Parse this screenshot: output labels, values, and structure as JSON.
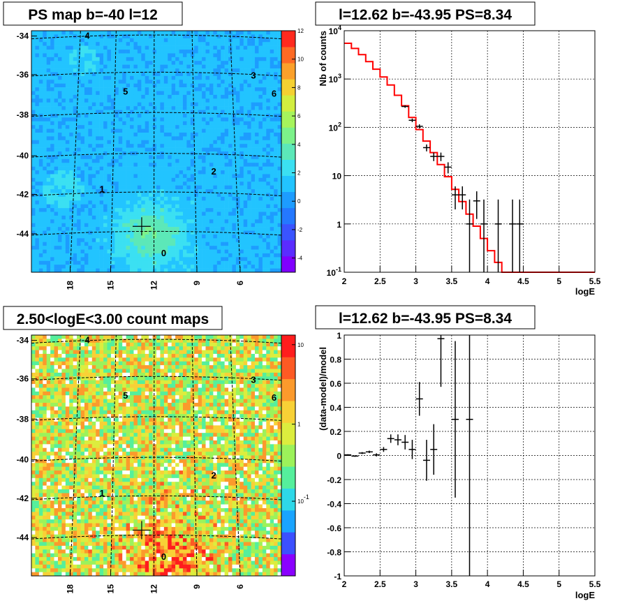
{
  "chart_data": [
    {
      "type": "heatmap",
      "title": "PS map b=-40 l=12",
      "xticks": [
        "18",
        "15",
        "12",
        "9",
        "6"
      ],
      "yticks": [
        "-34",
        "-36",
        "-38",
        "-40",
        "-42",
        "-44"
      ],
      "xlim": [
        20,
        3
      ],
      "ylim": [
        -46,
        -33.9
      ],
      "colorbar": {
        "ticks": [
          "12",
          "10",
          "8",
          "6",
          "4",
          "2",
          "0",
          "-2",
          "-4"
        ],
        "range": [
          -5,
          12
        ]
      },
      "sources": [
        {
          "label": "0",
          "x": 11.0,
          "y": -45.2
        },
        {
          "label": "1",
          "x": 15.2,
          "y": -42.0
        },
        {
          "label": "2",
          "x": 7.6,
          "y": -41.1
        },
        {
          "label": "3",
          "x": 4.9,
          "y": -36.3
        },
        {
          "label": "4",
          "x": 16.2,
          "y": -34.3
        },
        {
          "label": "5",
          "x": 13.6,
          "y": -37.1
        },
        {
          "label": "6",
          "x": 3.5,
          "y": -37.2
        }
      ],
      "marker": {
        "x": 12.5,
        "y": -43.7
      }
    },
    {
      "type": "line",
      "title": "l=12.62 b=-43.95 PS=8.34",
      "xlabel": "logE",
      "ylabel": "Nb of counts",
      "xlim": [
        2,
        5.5
      ],
      "ylim": [
        0.1,
        10000
      ],
      "yscale": "log",
      "grid": true,
      "xticks": [
        "2",
        "2.5",
        "3",
        "3.5",
        "4",
        "4.5",
        "5",
        "5.5"
      ],
      "yticks": [
        "10^-1",
        "1",
        "10",
        "10^2",
        "10^3",
        "10^4"
      ],
      "series": [
        {
          "kind": "model-histogram",
          "color": "#ff0000",
          "x": [
            2.0,
            2.1,
            2.2,
            2.3,
            2.4,
            2.5,
            2.6,
            2.7,
            2.8,
            2.9,
            3.0,
            3.1,
            3.2,
            3.3,
            3.4,
            3.5,
            3.6,
            3.7,
            3.8,
            3.9,
            4.0,
            4.1,
            4.2,
            4.3,
            4.4,
            4.5,
            4.6,
            4.7,
            4.8,
            4.9,
            5.0,
            5.1,
            5.2,
            5.3,
            5.4,
            5.5
          ],
          "values": [
            5500,
            4300,
            3200,
            2300,
            1600,
            1100,
            750,
            460,
            280,
            160,
            90,
            52,
            30,
            17,
            9.5,
            5.2,
            2.9,
            1.6,
            0.9,
            0.5,
            0.28,
            0.16,
            0.1,
            0.1,
            0.1,
            0.1,
            0.1,
            0.1,
            0.1,
            0.1,
            0.1,
            0.1,
            0.1,
            0.1,
            0.1
          ]
        },
        {
          "kind": "data-points",
          "color": "#000000",
          "points": [
            {
              "x": 2.85,
              "y": 270
            },
            {
              "x": 2.95,
              "y": 140
            },
            {
              "x": 3.05,
              "y": 105
            },
            {
              "x": 3.15,
              "y": 38
            },
            {
              "x": 3.25,
              "y": 25
            },
            {
              "x": 3.35,
              "y": 25
            },
            {
              "x": 3.45,
              "y": 15
            },
            {
              "x": 3.55,
              "y": 4
            },
            {
              "x": 3.65,
              "y": 4
            },
            {
              "x": 3.75,
              "y": 1
            },
            {
              "x": 3.85,
              "y": 3
            },
            {
              "x": 3.95,
              "y": 1
            },
            {
              "x": 4.15,
              "y": 1
            },
            {
              "x": 4.35,
              "y": 1
            },
            {
              "x": 4.45,
              "y": 1
            }
          ]
        }
      ]
    },
    {
      "type": "heatmap",
      "title": "2.50<logE<3.00 count maps",
      "xticks": [
        "18",
        "15",
        "12",
        "9",
        "6"
      ],
      "yticks": [
        "-34",
        "-36",
        "-38",
        "-40",
        "-42",
        "-44"
      ],
      "xlim": [
        20,
        3
      ],
      "ylim": [
        -46,
        -33.9
      ],
      "colorbar": {
        "ticks": [
          "10",
          "1",
          "10^-1"
        ],
        "scale": "log"
      },
      "sources": [
        {
          "label": "0",
          "x": 11.0,
          "y": -45.2
        },
        {
          "label": "1",
          "x": 15.2,
          "y": -42.0
        },
        {
          "label": "2",
          "x": 7.6,
          "y": -41.1
        },
        {
          "label": "3",
          "x": 4.9,
          "y": -36.3
        },
        {
          "label": "4",
          "x": 16.2,
          "y": -34.3
        },
        {
          "label": "5",
          "x": 13.6,
          "y": -37.1
        },
        {
          "label": "6",
          "x": 3.5,
          "y": -37.2
        }
      ],
      "marker": {
        "x": 12.5,
        "y": -43.7
      }
    },
    {
      "type": "scatter",
      "title": "l=12.62 b=-43.95 PS=8.34",
      "xlabel": "logE",
      "ylabel": "(data-model)/model",
      "xlim": [
        2,
        5.5
      ],
      "ylim": [
        -1,
        1
      ],
      "grid": true,
      "xticks": [
        "2",
        "2.5",
        "3",
        "3.5",
        "4",
        "4.5",
        "5",
        "5.5"
      ],
      "yticks": [
        "-1",
        "-0.8",
        "-0.6",
        "-0.4",
        "-0.2",
        "0",
        "0.2",
        "0.4",
        "0.6",
        "0.8",
        "1"
      ],
      "points": [
        {
          "x": 2.05,
          "y": 0.005,
          "err": 0.005
        },
        {
          "x": 2.15,
          "y": -0.005,
          "err": 0.006
        },
        {
          "x": 2.25,
          "y": 0.02,
          "err": 0.008
        },
        {
          "x": 2.35,
          "y": 0.03,
          "err": 0.01
        },
        {
          "x": 2.45,
          "y": 0.005,
          "err": 0.013
        },
        {
          "x": 2.55,
          "y": 0.05,
          "err": 0.02
        },
        {
          "x": 2.65,
          "y": 0.14,
          "err": 0.035
        },
        {
          "x": 2.75,
          "y": 0.13,
          "err": 0.045
        },
        {
          "x": 2.85,
          "y": 0.11,
          "err": 0.06
        },
        {
          "x": 2.95,
          "y": 0.05,
          "err": 0.08
        },
        {
          "x": 3.05,
          "y": 0.47,
          "err": 0.14
        },
        {
          "x": 3.15,
          "y": -0.04,
          "err": 0.17
        },
        {
          "x": 3.25,
          "y": 0.05,
          "err": 0.21
        },
        {
          "x": 3.35,
          "y": 0.97,
          "err": 0.4
        },
        {
          "x": 3.55,
          "y": 0.3,
          "err": 0.65
        },
        {
          "x": 3.75,
          "y": 0.3,
          "err": 1.4
        }
      ]
    }
  ]
}
